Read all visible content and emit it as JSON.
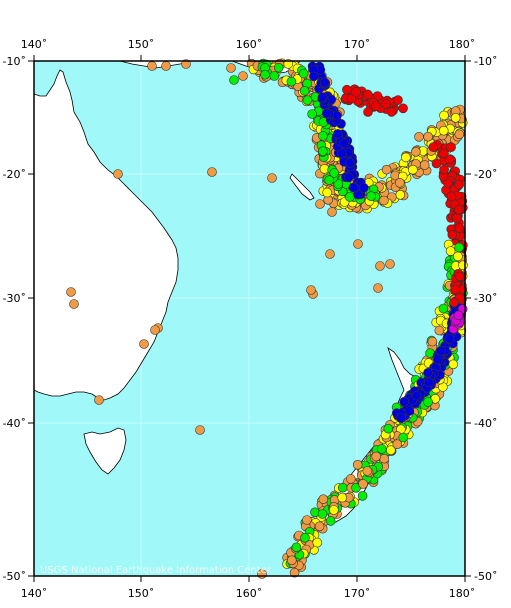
{
  "map": {
    "lon_range": [
      140,
      180
    ],
    "lat_range": [
      -50,
      -10
    ],
    "ocean_color": "#a0f8f8",
    "land_color": "#ffffff",
    "graticule_color": "#d8ffff",
    "top_lon_labels": [
      "140˚",
      "150˚",
      "160˚",
      "170˚",
      "180˚"
    ],
    "bottom_lon_labels": [
      "140˚",
      "150˚",
      "160˚",
      "170˚",
      "180˚"
    ],
    "left_lat_labels": [
      "-10˚",
      "-20˚",
      "-30˚",
      "-40˚",
      "-50˚"
    ],
    "right_lat_labels": [
      "-10˚",
      "-20˚",
      "-30˚",
      "-40˚",
      "-50˚"
    ],
    "lon_ticks": [
      140,
      150,
      160,
      170,
      180
    ],
    "lat_ticks": [
      -10,
      -20,
      -30,
      -40,
      -50
    ],
    "credit": "USGS National Earthquake Information Center"
  },
  "legend_colors": {
    "orange": "#f09a44",
    "yellow": "#ffff00",
    "green": "#00ee00",
    "red": "#ee0000",
    "blue": "#0000dd",
    "magenta": "#dd00dd"
  }
}
